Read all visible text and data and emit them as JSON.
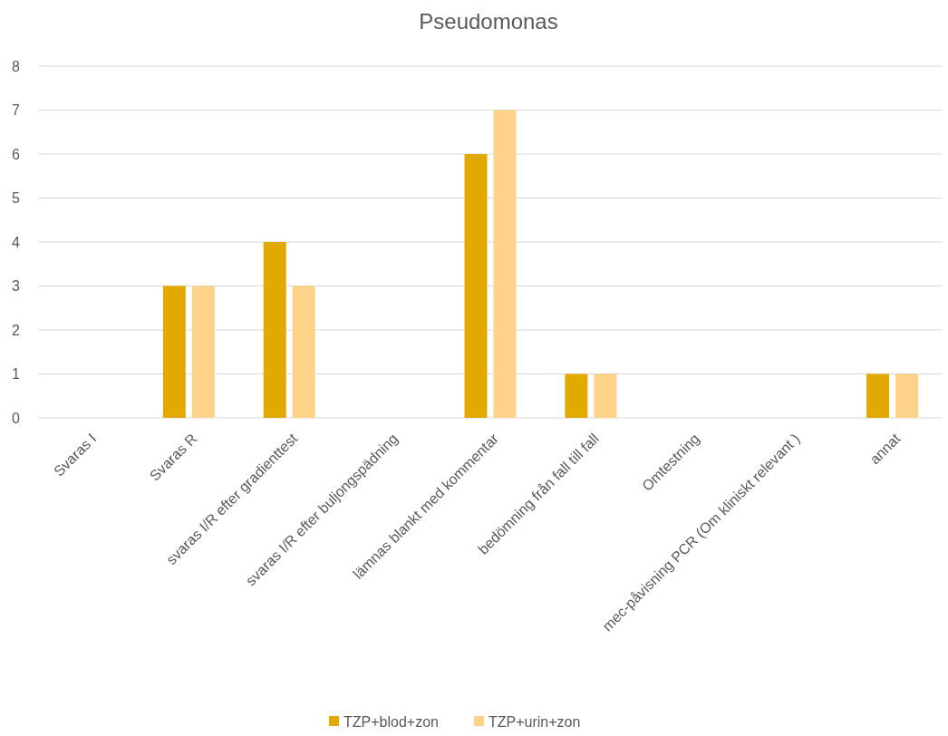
{
  "chart_data": {
    "type": "bar",
    "title": "Pseudomonas",
    "categories": [
      "Svaras I",
      "Svaras R",
      "svaras I/R efter gradienttest",
      "svaras I/R efter buljongspädning",
      "lämnas blankt med kommentar",
      "bedömning från fall till fall",
      "Omtestning",
      "mec-påvisning PCR (Om kliniskt relevant )",
      "annat"
    ],
    "series": [
      {
        "name": "TZP+blod+zon",
        "color": "#e2aa00",
        "values": [
          0,
          3,
          4,
          0,
          6,
          1,
          0,
          0,
          1
        ]
      },
      {
        "name": "TZP+urin+zon",
        "color": "#ffd28a",
        "values": [
          0,
          3,
          3,
          0,
          7,
          1,
          0,
          0,
          1
        ]
      }
    ],
    "ylim": [
      0,
      8
    ],
    "yticks": [
      0,
      1,
      2,
      3,
      4,
      5,
      6,
      7,
      8
    ],
    "grid": "y",
    "legend": "bottom"
  }
}
